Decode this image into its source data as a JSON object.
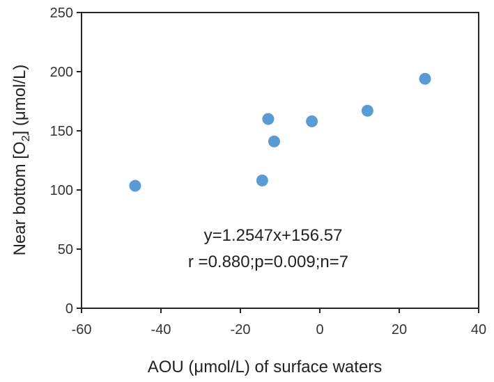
{
  "chart_data": {
    "type": "scatter",
    "title": "",
    "xlabel": "AOU (μmol/L) of surface waters",
    "ylabel": {
      "prefix": "Near bottom [O",
      "subscript": "2",
      "suffix": "] (μmol/L)"
    },
    "xlim": [
      -60,
      40
    ],
    "ylim": [
      0,
      250
    ],
    "xticks": [
      -60,
      -40,
      -20,
      0,
      20,
      40
    ],
    "yticks": [
      0,
      50,
      100,
      150,
      200,
      250
    ],
    "grid": false,
    "legend": "none",
    "marker_color": "#5B9BD5",
    "points": [
      {
        "x": -46.5,
        "y": 103.5
      },
      {
        "x": -14.5,
        "y": 108.0
      },
      {
        "x": -13.0,
        "y": 160.0
      },
      {
        "x": -11.5,
        "y": 141.0
      },
      {
        "x": -2.0,
        "y": 158.0
      },
      {
        "x": 12.0,
        "y": 167.0
      },
      {
        "x": 26.5,
        "y": 194.0
      }
    ],
    "annotations": {
      "equation": "y=1.2547x+156.57",
      "stats": "r =0.880;p=0.009;n=7"
    }
  }
}
